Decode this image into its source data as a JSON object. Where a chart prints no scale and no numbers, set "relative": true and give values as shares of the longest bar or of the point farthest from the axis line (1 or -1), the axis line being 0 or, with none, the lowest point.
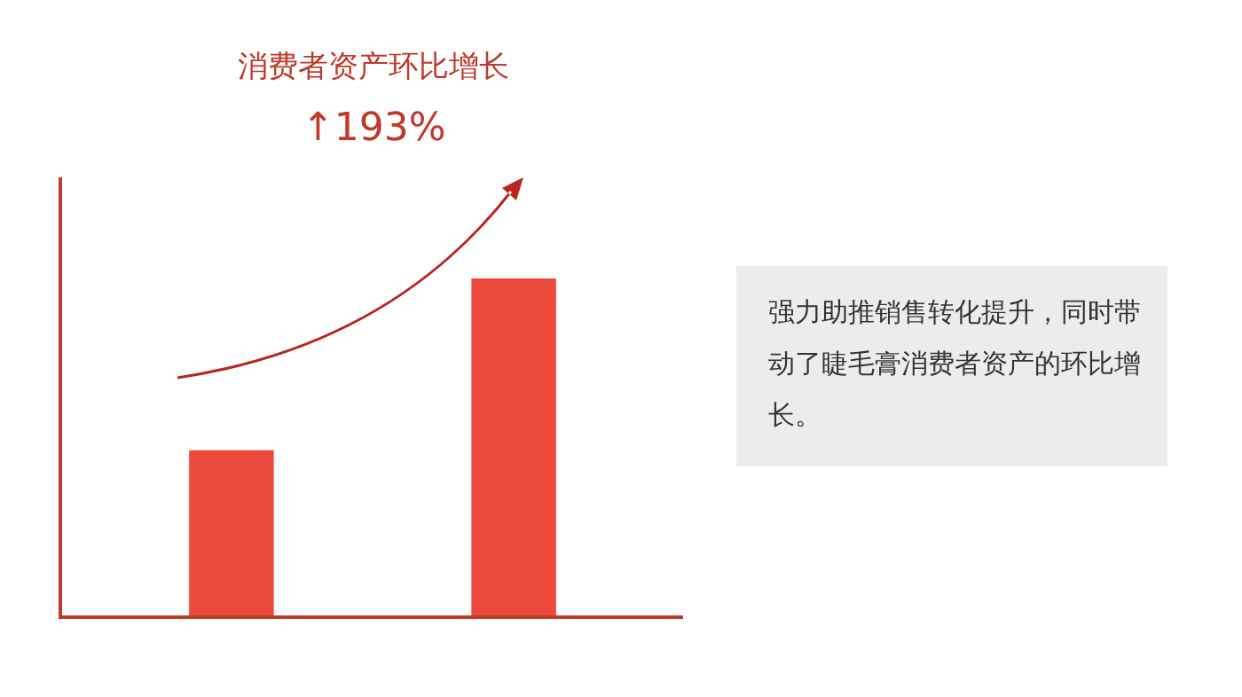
{
  "chart_data": {
    "type": "bar",
    "title": "消费者资产环比增长",
    "subtitle": "↑193%",
    "categories": [
      null,
      null
    ],
    "values": [
      0.49,
      1
    ],
    "color": "#ec4a3c",
    "relative": true,
    "annotations": [
      "强力助推销售转化提升，同时带动了睫毛膏消费者资产的环比增长。"
    ]
  }
}
